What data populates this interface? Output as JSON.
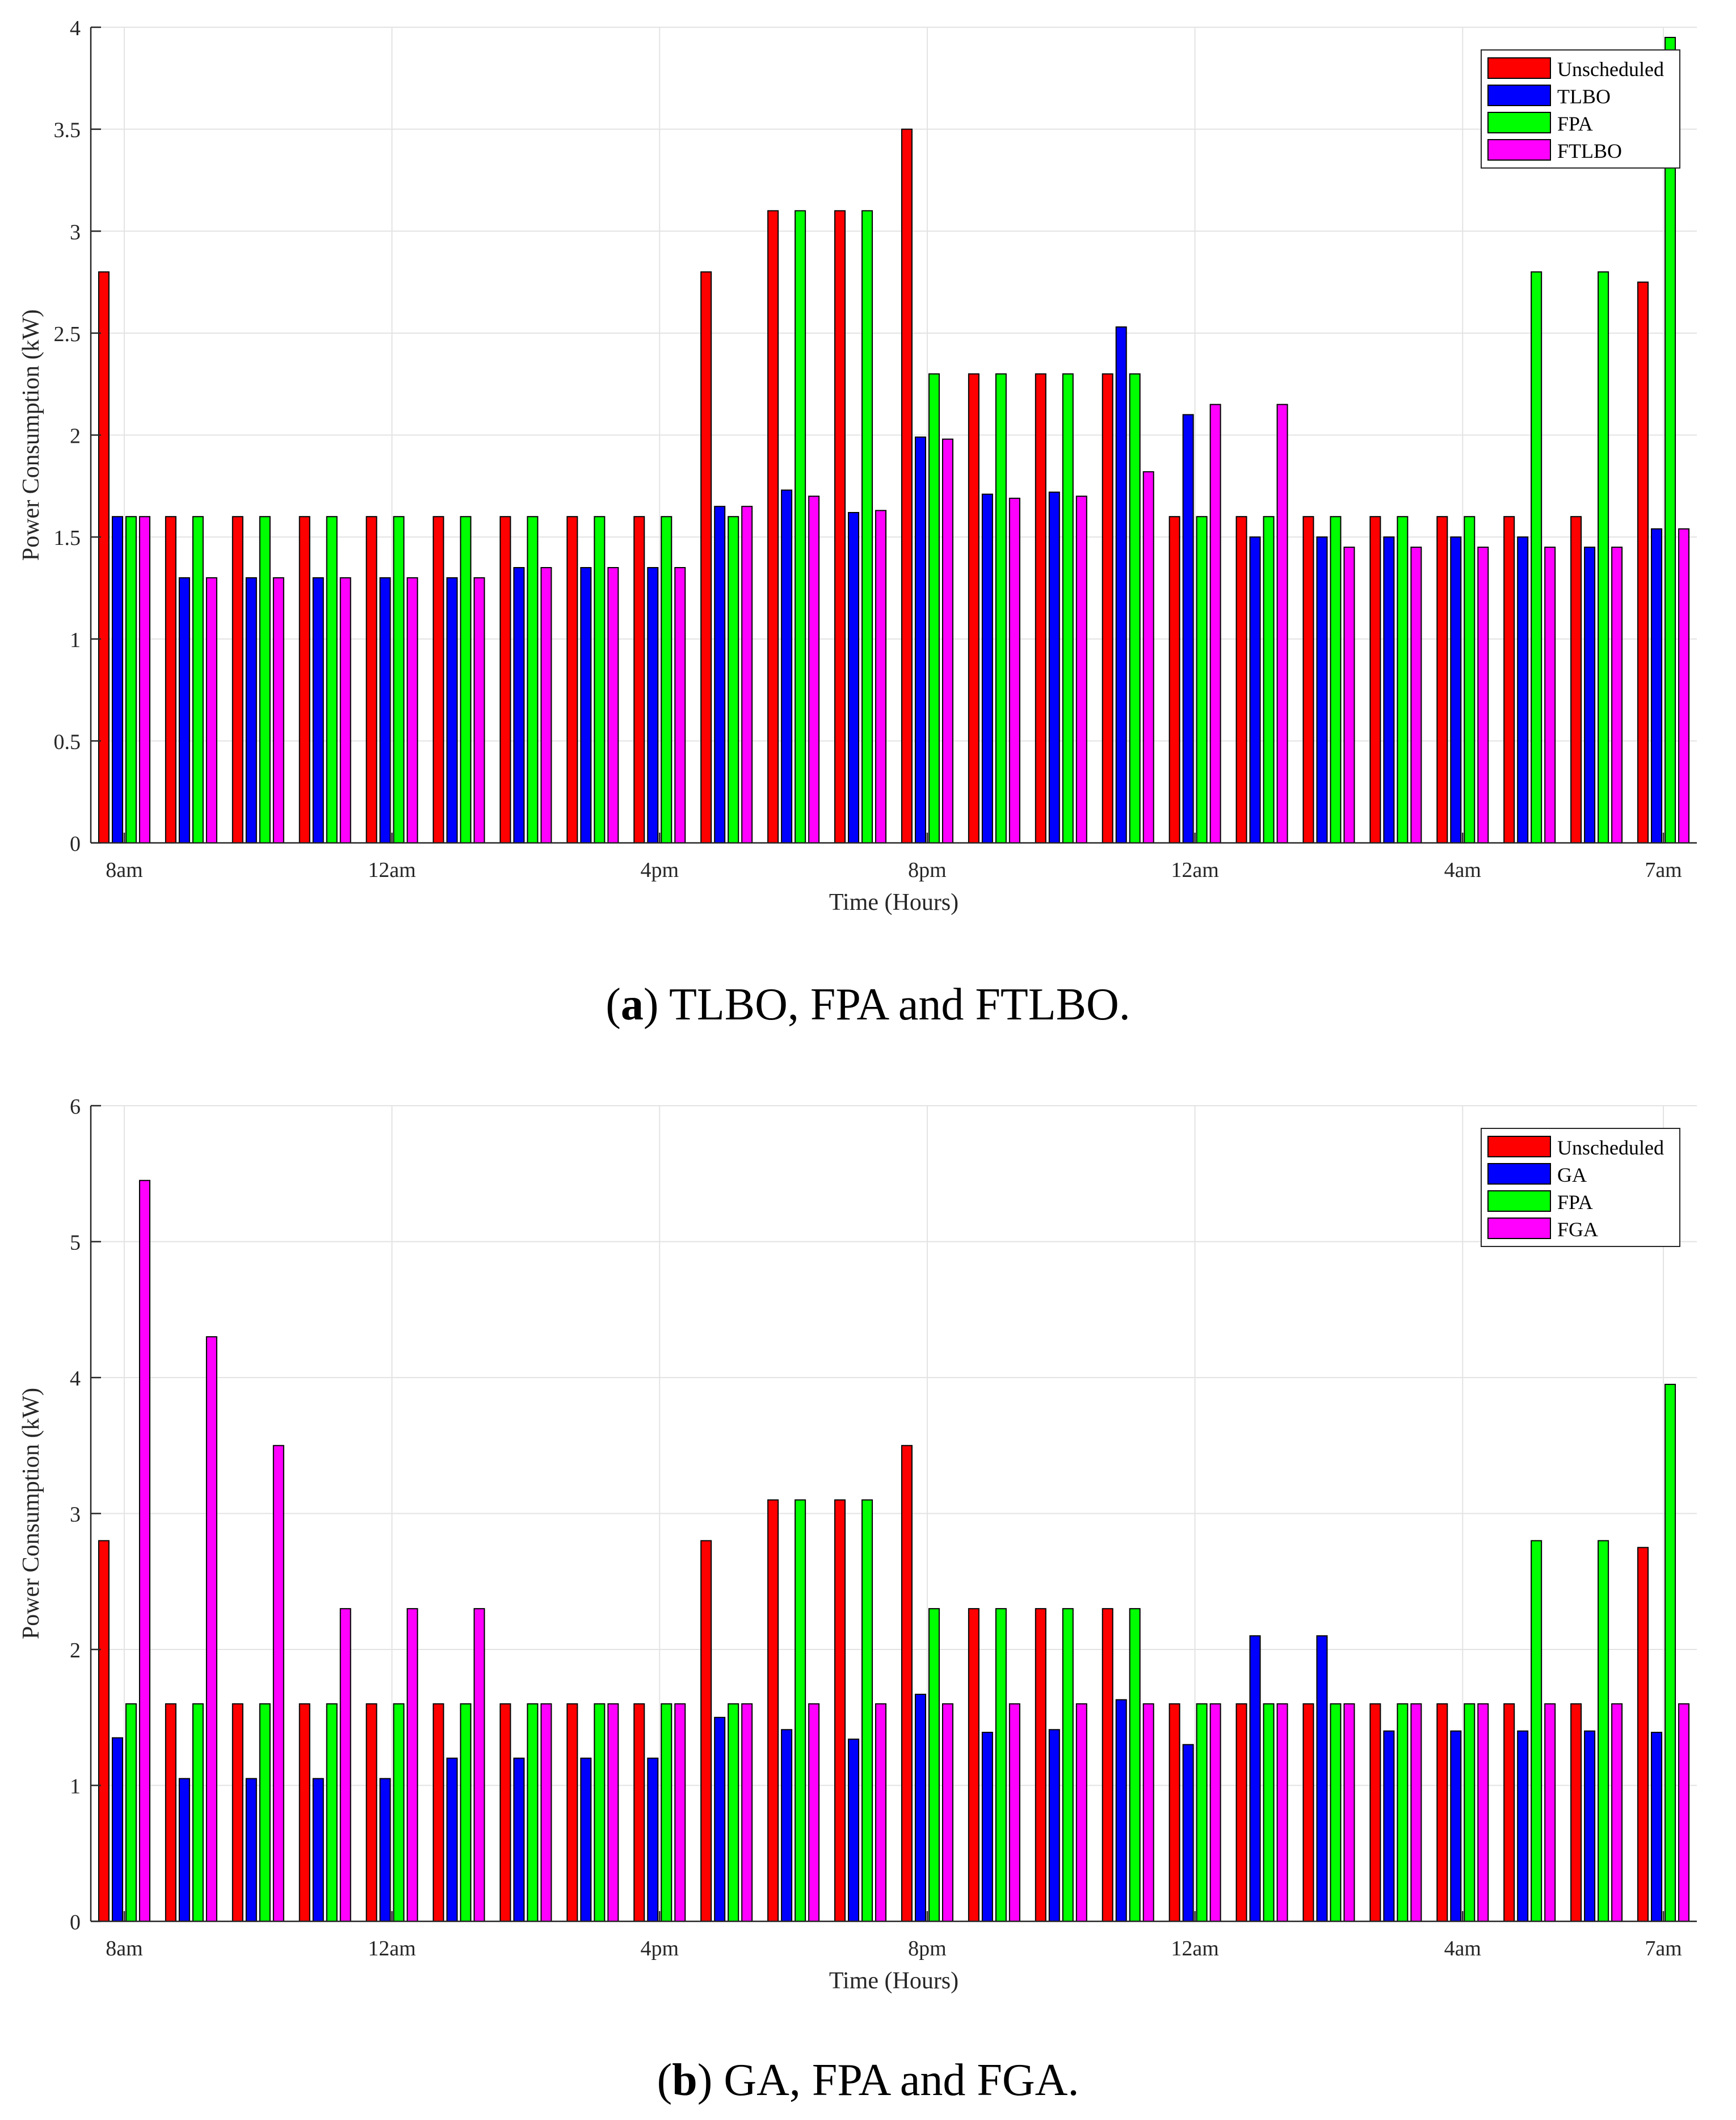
{
  "captions": [
    {
      "letter": "a",
      "text": "TLBO, FPA and FTLBO."
    },
    {
      "letter": "b",
      "text": "GA, FPA and FGA."
    }
  ],
  "colors": {
    "Unscheduled": "#ff0000",
    "blue": "#0000ff",
    "FPA": "#00ff00",
    "magenta": "#ff00ff"
  },
  "chart_data": [
    {
      "type": "bar",
      "title": "",
      "xlabel": "Time (Hours)",
      "ylabel": "Power Consumption (kW)",
      "ylim": [
        0,
        4
      ],
      "yticks": [
        0,
        0.5,
        1,
        1.5,
        2,
        2.5,
        3,
        3.5,
        4
      ],
      "ytick_labels": [
        "0",
        "0.5",
        "1",
        "1.5",
        "2",
        "2.5",
        "3",
        "3.5",
        "4"
      ],
      "xtick_positions": [
        1,
        5,
        9,
        13,
        17,
        21,
        24
      ],
      "xtick_labels": [
        "8am",
        "12am",
        "4pm",
        "8pm",
        "12am",
        "4am",
        "7am"
      ],
      "grid": true,
      "legend": "top-right",
      "categories": [
        1,
        2,
        3,
        4,
        5,
        6,
        7,
        8,
        9,
        10,
        11,
        12,
        13,
        14,
        15,
        16,
        17,
        18,
        19,
        20,
        21,
        22,
        23,
        24
      ],
      "series": [
        {
          "name": "Unscheduled",
          "color": "#ff0000",
          "values": [
            2.8,
            1.6,
            1.6,
            1.6,
            1.6,
            1.6,
            1.6,
            1.6,
            1.6,
            2.8,
            3.1,
            3.1,
            3.5,
            2.3,
            2.3,
            2.3,
            1.6,
            1.6,
            1.6,
            1.6,
            1.6,
            1.6,
            1.6,
            2.75
          ]
        },
        {
          "name": "TLBO",
          "color": "#0000ff",
          "values": [
            1.6,
            1.3,
            1.3,
            1.3,
            1.3,
            1.3,
            1.35,
            1.35,
            1.35,
            1.65,
            1.73,
            1.62,
            1.99,
            1.71,
            1.72,
            2.53,
            2.1,
            1.5,
            1.5,
            1.5,
            1.5,
            1.5,
            1.45,
            1.54
          ]
        },
        {
          "name": "FPA",
          "color": "#00ff00",
          "values": [
            1.6,
            1.6,
            1.6,
            1.6,
            1.6,
            1.6,
            1.6,
            1.6,
            1.6,
            1.6,
            3.1,
            3.1,
            2.3,
            2.3,
            2.3,
            2.3,
            1.6,
            1.6,
            1.6,
            1.6,
            1.6,
            2.8,
            2.8,
            3.95
          ]
        },
        {
          "name": "FTLBO",
          "color": "#ff00ff",
          "values": [
            1.6,
            1.3,
            1.3,
            1.3,
            1.3,
            1.3,
            1.35,
            1.35,
            1.35,
            1.65,
            1.7,
            1.63,
            1.98,
            1.69,
            1.7,
            1.82,
            2.15,
            2.15,
            1.45,
            1.45,
            1.45,
            1.45,
            1.45,
            1.54
          ]
        }
      ]
    },
    {
      "type": "bar",
      "title": "",
      "xlabel": "Time (Hours)",
      "ylabel": "Power Consumption (kW)",
      "ylim": [
        0,
        6
      ],
      "yticks": [
        0,
        1,
        2,
        3,
        4,
        5,
        6
      ],
      "ytick_labels": [
        "0",
        "1",
        "2",
        "3",
        "4",
        "5",
        "6"
      ],
      "xtick_positions": [
        1,
        5,
        9,
        13,
        17,
        21,
        24
      ],
      "xtick_labels": [
        "8am",
        "12am",
        "4pm",
        "8pm",
        "12am",
        "4am",
        "7am"
      ],
      "grid": true,
      "legend": "top-right",
      "categories": [
        1,
        2,
        3,
        4,
        5,
        6,
        7,
        8,
        9,
        10,
        11,
        12,
        13,
        14,
        15,
        16,
        17,
        18,
        19,
        20,
        21,
        22,
        23,
        24
      ],
      "series": [
        {
          "name": "Unscheduled",
          "color": "#ff0000",
          "values": [
            2.8,
            1.6,
            1.6,
            1.6,
            1.6,
            1.6,
            1.6,
            1.6,
            1.6,
            2.8,
            3.1,
            3.1,
            3.5,
            2.3,
            2.3,
            2.3,
            1.6,
            1.6,
            1.6,
            1.6,
            1.6,
            1.6,
            1.6,
            2.75
          ]
        },
        {
          "name": "GA",
          "color": "#0000ff",
          "values": [
            1.35,
            1.05,
            1.05,
            1.05,
            1.05,
            1.2,
            1.2,
            1.2,
            1.2,
            1.5,
            1.41,
            1.34,
            1.67,
            1.39,
            1.41,
            1.63,
            1.3,
            2.1,
            2.1,
            1.4,
            1.4,
            1.4,
            1.4,
            1.39
          ]
        },
        {
          "name": "FPA",
          "color": "#00ff00",
          "values": [
            1.6,
            1.6,
            1.6,
            1.6,
            1.6,
            1.6,
            1.6,
            1.6,
            1.6,
            1.6,
            3.1,
            3.1,
            2.3,
            2.3,
            2.3,
            2.3,
            1.6,
            1.6,
            1.6,
            1.6,
            1.6,
            2.8,
            2.8,
            3.95
          ]
        },
        {
          "name": "FGA",
          "color": "#ff00ff",
          "values": [
            5.45,
            4.3,
            3.5,
            2.3,
            2.3,
            2.3,
            1.6,
            1.6,
            1.6,
            1.6,
            1.6,
            1.6,
            1.6,
            1.6,
            1.6,
            1.6,
            1.6,
            1.6,
            1.6,
            1.6,
            1.6,
            1.6,
            1.6,
            1.6
          ]
        }
      ]
    }
  ]
}
